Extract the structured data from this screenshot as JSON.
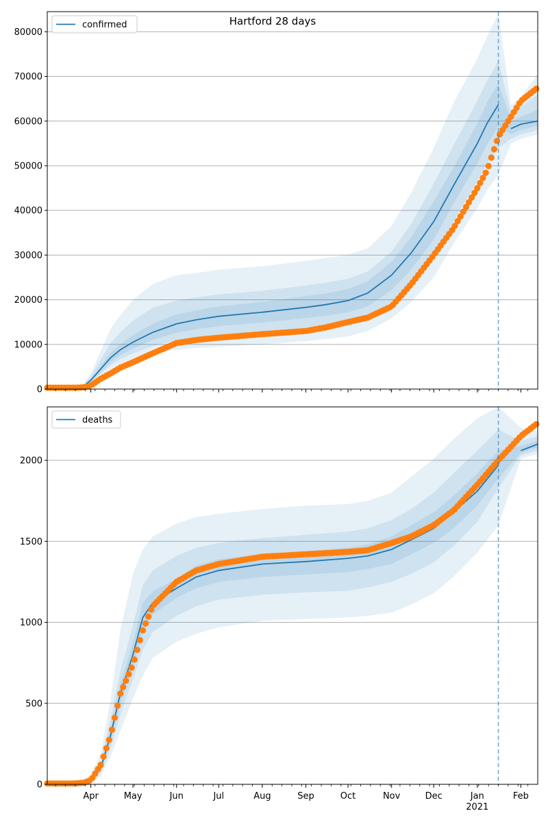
{
  "figure_title": "Hartford 28 days",
  "colors": {
    "model": "#1f77b4",
    "observed": "#ff7f0e",
    "band": "#1f77b4",
    "grid": "#b0b0b0",
    "forecast_line": "#1f77b4"
  },
  "forecast_start": "2021-01-16",
  "chart_data": [
    {
      "type": "line",
      "legend": "confirmed",
      "legend_position": "top-left",
      "grid": "y",
      "xlim": [
        "2020-03-01",
        "2021-02-13"
      ],
      "ylim": [
        0,
        84500
      ],
      "yticks": [
        0,
        10000,
        20000,
        30000,
        40000,
        50000,
        60000,
        70000,
        80000
      ],
      "model_x": [
        "2020-03-01",
        "2020-03-20",
        "2020-03-27",
        "2020-04-01",
        "2020-04-08",
        "2020-04-15",
        "2020-04-22",
        "2020-05-01",
        "2020-05-15",
        "2020-06-01",
        "2020-06-15",
        "2020-07-01",
        "2020-08-01",
        "2020-09-01",
        "2020-09-15",
        "2020-10-01",
        "2020-10-15",
        "2020-11-01",
        "2020-11-15",
        "2020-12-01",
        "2020-12-15",
        "2021-01-01",
        "2021-01-08",
        "2021-01-16",
        "2021-01-25",
        "2021-02-01",
        "2021-02-13"
      ],
      "model_y": [
        100,
        200,
        700,
        2000,
        4500,
        7000,
        8800,
        10500,
        12700,
        14600,
        15500,
        16300,
        17200,
        18300,
        18900,
        19800,
        21500,
        25500,
        30500,
        37500,
        45500,
        55000,
        59500,
        63700,
        58300,
        59300,
        60000
      ],
      "bands": [
        {
          "lo": [
            0,
            0,
            350,
            1200,
            2800,
            4400,
            5600,
            6700,
            7900,
            8800,
            9200,
            9500,
            10000,
            10700,
            11200,
            11800,
            13000,
            15800,
            19500,
            25000,
            32500,
            40500,
            44500,
            48000,
            55000,
            56000,
            57000
          ],
          "hi": [
            300,
            500,
            1200,
            3500,
            8500,
            13500,
            16500,
            20000,
            23500,
            25500,
            26000,
            26700,
            27500,
            28700,
            29300,
            30100,
            31500,
            36500,
            44000,
            54000,
            64000,
            74000,
            79000,
            84000,
            63500,
            65500,
            70500
          ]
        },
        {
          "lo": [
            0,
            50,
            450,
            1500,
            3400,
            5300,
            6700,
            8000,
            9600,
            10900,
            11500,
            12000,
            12700,
            13600,
            14100,
            14800,
            16000,
            19500,
            23500,
            30000,
            37500,
            46500,
            50500,
            54000,
            56000,
            57000,
            58000
          ],
          "hi": [
            200,
            400,
            1000,
            2900,
            6600,
            10300,
            12700,
            15300,
            18200,
            19800,
            20500,
            21200,
            22000,
            23200,
            23800,
            24700,
            26300,
            30800,
            37000,
            46000,
            54500,
            64500,
            69000,
            73500,
            61800,
            63200,
            66000
          ]
        },
        {
          "lo": [
            50,
            100,
            550,
            1700,
            3900,
            6000,
            7600,
            9100,
            11000,
            12600,
            13400,
            14100,
            14900,
            15900,
            16400,
            17200,
            18500,
            22200,
            26800,
            33500,
            41500,
            50500,
            54800,
            58800,
            57000,
            58000,
            59000
          ],
          "hi": [
            150,
            300,
            850,
            2300,
            5200,
            8100,
            10100,
            12100,
            14600,
            16700,
            17600,
            18500,
            19500,
            20800,
            21400,
            22400,
            24100,
            28500,
            34000,
            42000,
            49500,
            59500,
            64200,
            68500,
            60000,
            61000,
            62500
          ]
        }
      ],
      "observed_x": [
        "2020-03-01",
        "2020-03-20",
        "2020-03-27",
        "2020-04-01",
        "2020-04-08",
        "2020-04-15",
        "2020-04-22",
        "2020-05-01",
        "2020-05-15",
        "2020-06-01",
        "2020-06-15",
        "2020-07-01",
        "2020-08-01",
        "2020-09-01",
        "2020-09-15",
        "2020-10-01",
        "2020-10-15",
        "2020-11-01",
        "2020-11-15",
        "2020-12-01",
        "2020-12-15",
        "2021-01-01",
        "2021-01-08",
        "2021-01-16",
        "2021-01-25",
        "2021-02-01",
        "2021-02-13"
      ],
      "observed_y": [
        300,
        300,
        400,
        800,
        2300,
        3500,
        4800,
        6000,
        8000,
        10300,
        11000,
        11500,
        12300,
        13000,
        13800,
        15000,
        16000,
        18500,
        23500,
        30000,
        36000,
        45000,
        49000,
        56500,
        61000,
        64500,
        67500
      ]
    },
    {
      "type": "line",
      "legend": "deaths",
      "legend_position": "top-left",
      "grid": "y",
      "xlim": [
        "2020-03-01",
        "2021-02-13"
      ],
      "ylim": [
        0,
        2330
      ],
      "yticks": [
        0,
        500,
        1000,
        1500,
        2000
      ],
      "model_x": [
        "2020-03-01",
        "2020-03-20",
        "2020-03-27",
        "2020-04-01",
        "2020-04-08",
        "2020-04-15",
        "2020-04-22",
        "2020-05-01",
        "2020-05-08",
        "2020-05-15",
        "2020-06-01",
        "2020-06-15",
        "2020-07-01",
        "2020-08-01",
        "2020-09-01",
        "2020-10-01",
        "2020-10-15",
        "2020-11-01",
        "2020-11-15",
        "2020-12-01",
        "2020-12-15",
        "2021-01-01",
        "2021-01-16",
        "2021-02-01",
        "2021-02-13"
      ],
      "model_y": [
        5,
        5,
        10,
        25,
        100,
        300,
        560,
        800,
        1030,
        1120,
        1210,
        1280,
        1320,
        1360,
        1375,
        1395,
        1410,
        1450,
        1510,
        1580,
        1680,
        1810,
        1970,
        2060,
        2100
      ],
      "bands": [
        {
          "lo": [
            0,
            0,
            5,
            10,
            50,
            170,
            330,
            530,
            670,
            780,
            880,
            930,
            970,
            1010,
            1020,
            1030,
            1040,
            1060,
            1110,
            1180,
            1280,
            1430,
            1600,
            2010,
            2040
          ],
          "hi": [
            10,
            15,
            25,
            60,
            190,
            520,
            950,
            1300,
            1450,
            1530,
            1610,
            1650,
            1670,
            1700,
            1720,
            1730,
            1750,
            1800,
            1900,
            2010,
            2130,
            2260,
            2330,
            2200,
            2180
          ]
        },
        {
          "lo": [
            0,
            0,
            5,
            15,
            70,
            220,
            430,
            650,
            830,
            940,
            1040,
            1100,
            1140,
            1170,
            1185,
            1195,
            1215,
            1250,
            1300,
            1370,
            1470,
            1620,
            1830,
            2030,
            2060
          ],
          "hi": [
            8,
            10,
            18,
            40,
            140,
            400,
            700,
            980,
            1230,
            1320,
            1410,
            1460,
            1490,
            1520,
            1540,
            1560,
            1580,
            1630,
            1700,
            1800,
            1920,
            2060,
            2190,
            2120,
            2150
          ]
        },
        {
          "lo": [
            2,
            2,
            7,
            20,
            85,
            260,
            500,
            730,
            940,
            1050,
            1150,
            1210,
            1250,
            1280,
            1295,
            1310,
            1330,
            1360,
            1420,
            1490,
            1580,
            1720,
            1890,
            2045,
            2080
          ],
          "hi": [
            7,
            8,
            14,
            32,
            115,
            340,
            620,
            870,
            1120,
            1190,
            1270,
            1350,
            1390,
            1420,
            1440,
            1460,
            1480,
            1530,
            1600,
            1680,
            1780,
            1920,
            2060,
            2090,
            2120
          ]
        }
      ],
      "observed_x": [
        "2020-03-01",
        "2020-03-20",
        "2020-03-27",
        "2020-04-01",
        "2020-04-08",
        "2020-04-15",
        "2020-04-22",
        "2020-05-01",
        "2020-05-08",
        "2020-05-15",
        "2020-06-01",
        "2020-06-15",
        "2020-07-01",
        "2020-08-01",
        "2020-09-01",
        "2020-10-01",
        "2020-10-15",
        "2020-11-01",
        "2020-11-15",
        "2020-12-01",
        "2020-12-15",
        "2021-01-01",
        "2021-01-16",
        "2021-02-01",
        "2021-02-13"
      ],
      "observed_y": [
        5,
        5,
        10,
        25,
        120,
        300,
        560,
        740,
        950,
        1100,
        1250,
        1320,
        1360,
        1405,
        1420,
        1435,
        1445,
        1490,
        1530,
        1600,
        1690,
        1850,
        2000,
        2150,
        2230
      ]
    }
  ],
  "xaxis": {
    "ticks": [
      {
        "date": "2020-04-01",
        "label": "Apr"
      },
      {
        "date": "2020-05-01",
        "label": "May"
      },
      {
        "date": "2020-06-01",
        "label": "Jun"
      },
      {
        "date": "2020-07-01",
        "label": "Jul"
      },
      {
        "date": "2020-08-01",
        "label": "Aug"
      },
      {
        "date": "2020-09-01",
        "label": "Sep"
      },
      {
        "date": "2020-10-01",
        "label": "Oct"
      },
      {
        "date": "2020-11-01",
        "label": "Nov"
      },
      {
        "date": "2020-12-01",
        "label": "Dec"
      },
      {
        "date": "2021-01-01",
        "label": "Jan"
      },
      {
        "date": "2021-02-01",
        "label": "Feb"
      }
    ],
    "year_label": {
      "date": "2021-01-01",
      "label": "2021"
    }
  }
}
